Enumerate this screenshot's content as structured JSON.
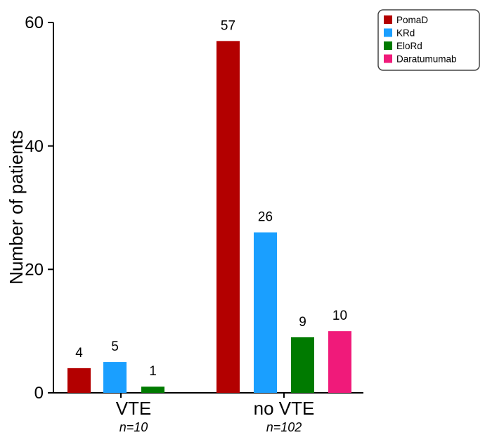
{
  "chart_data": {
    "type": "bar",
    "ylabel": "Number of patients",
    "xlabel": "",
    "ylim": [
      0,
      60
    ],
    "yticks": [
      "0",
      "20",
      "40",
      "60"
    ],
    "categories": [
      "VTE",
      "no VTE"
    ],
    "category_notes": [
      "n=10",
      "n=102"
    ],
    "legend_position": "top-right",
    "grid": false,
    "series": [
      {
        "name": "PomaD",
        "color": "#b30000",
        "values": [
          4,
          57
        ]
      },
      {
        "name": "KRd",
        "color": "#1a9fff",
        "values": [
          5,
          26
        ]
      },
      {
        "name": "EloRd",
        "color": "#007a00",
        "values": [
          1,
          9
        ]
      },
      {
        "name": "Daratumumab",
        "color": "#f01a7a",
        "values": [
          null,
          10
        ]
      }
    ]
  }
}
